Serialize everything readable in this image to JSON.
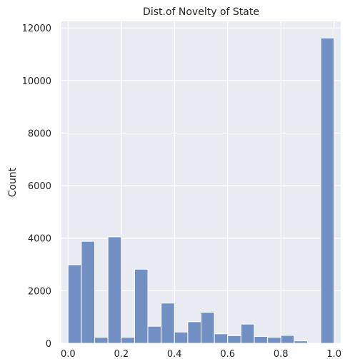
{
  "chart_data": {
    "type": "bar",
    "title": "Dist.of Novelty of State",
    "xlabel": "",
    "ylabel": "Count",
    "xlim": [
      -0.025,
      1.025
    ],
    "ylim": [
      0,
      12250
    ],
    "grid": true,
    "colors": {
      "background": "#eaeaf2",
      "grid": "#ffffff",
      "bar_fill": "#7390c4",
      "bar_edge": "#ffffff"
    },
    "bin_width": 0.05,
    "x_ticks": [
      0.0,
      0.2,
      0.4,
      0.6,
      0.8,
      1.0
    ],
    "x_tick_labels": [
      "0.0",
      "0.2",
      "0.4",
      "0.6",
      "0.8",
      "1.0"
    ],
    "y_ticks": [
      0,
      2000,
      4000,
      6000,
      8000,
      10000,
      12000
    ],
    "y_tick_labels": [
      "0",
      "2000",
      "4000",
      "6000",
      "8000",
      "10000",
      "12000"
    ],
    "bin_starts": [
      0.0,
      0.05,
      0.1,
      0.15,
      0.2,
      0.25,
      0.3,
      0.35,
      0.4,
      0.45,
      0.5,
      0.55,
      0.6,
      0.65,
      0.7,
      0.75,
      0.8,
      0.85,
      0.9,
      0.95
    ],
    "values": [
      2990,
      3880,
      230,
      4050,
      230,
      2820,
      650,
      1530,
      430,
      820,
      1180,
      360,
      290,
      730,
      260,
      230,
      300,
      90,
      0,
      11620
    ]
  }
}
